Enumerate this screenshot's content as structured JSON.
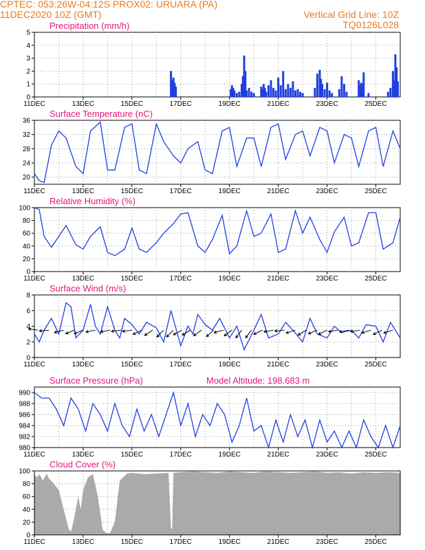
{
  "header": {
    "line1": "CPTEC:   053:26W-04:12S   PROX02: URUARA (PA)",
    "line2_left": "11DEC2020  10Z (GMT)",
    "line2_right": "Vertical Grid Line: 10Z",
    "line3_right": "TQ0126L028"
  },
  "colors": {
    "header": "#e87a1e",
    "title": "#e5157a",
    "series": "#1f3fe0",
    "cloud": "#aaaaaa",
    "grid": "#999999"
  },
  "x_axis": {
    "tick_labels": [
      "11DEC",
      "13DEC",
      "15DEC",
      "17DEC",
      "19DEC",
      "21DEC",
      "23DEC",
      "25DEC"
    ],
    "day_range": [
      11,
      26
    ]
  },
  "chart_data": [
    {
      "id": "precip",
      "type": "bar",
      "title": "Precipitation (mm/h)",
      "ylim": [
        0,
        5
      ],
      "yticks": [
        0,
        1,
        2,
        3,
        4,
        5
      ],
      "x": [
        16.6,
        16.65,
        16.7,
        16.75,
        16.8,
        19.05,
        19.1,
        19.15,
        19.2,
        19.3,
        19.4,
        19.5,
        19.55,
        19.6,
        19.65,
        19.7,
        19.8,
        19.9,
        20.0,
        20.3,
        20.35,
        20.4,
        20.45,
        20.5,
        20.6,
        20.7,
        20.8,
        20.9,
        21.0,
        21.1,
        21.2,
        21.3,
        21.4,
        21.5,
        21.6,
        21.7,
        21.8,
        21.9,
        22.0,
        22.5,
        22.6,
        22.7,
        22.75,
        22.8,
        22.9,
        23.0,
        23.1,
        23.2,
        23.5,
        23.6,
        23.7,
        23.8,
        24.3,
        24.35,
        24.4,
        24.45,
        24.5,
        24.7,
        25.5,
        25.6,
        25.7,
        25.75,
        25.8,
        25.85,
        25.9
      ],
      "values": [
        2.0,
        1.3,
        1.5,
        1.1,
        0.8,
        0.6,
        0.9,
        0.7,
        0.5,
        0.3,
        0.4,
        1.0,
        1.6,
        3.2,
        2.0,
        0.5,
        0.7,
        0.4,
        0.3,
        0.8,
        0.6,
        1.0,
        0.7,
        0.4,
        0.9,
        1.3,
        0.7,
        0.5,
        1.5,
        0.9,
        2.0,
        0.6,
        1.0,
        0.7,
        1.2,
        0.5,
        0.6,
        0.4,
        0.3,
        0.7,
        1.8,
        2.1,
        1.4,
        1.0,
        0.6,
        1.1,
        0.5,
        0.3,
        0.6,
        1.6,
        1.0,
        0.4,
        1.3,
        0.9,
        1.1,
        1.0,
        1.9,
        0.3,
        0.4,
        0.7,
        2.0,
        1.3,
        3.3,
        2.3,
        1.2
      ]
    },
    {
      "id": "temp",
      "type": "line",
      "title": "Surface Temperature (nC)",
      "ylim": [
        18,
        36
      ],
      "yticks": [
        20,
        24,
        28,
        32,
        36
      ],
      "x": [
        11.0,
        11.2,
        11.4,
        11.7,
        12.0,
        12.3,
        12.7,
        13.0,
        13.3,
        13.7,
        14.0,
        14.3,
        14.7,
        15.0,
        15.3,
        15.6,
        16.0,
        16.3,
        16.7,
        17.0,
        17.3,
        17.7,
        18.0,
        18.3,
        18.7,
        19.0,
        19.3,
        19.7,
        20.0,
        20.3,
        20.7,
        21.0,
        21.3,
        21.7,
        22.0,
        22.3,
        22.7,
        23.0,
        23.3,
        23.7,
        24.0,
        24.3,
        24.7,
        25.0,
        25.3,
        25.7,
        26.0
      ],
      "values": [
        21,
        19,
        18.5,
        29,
        33,
        31,
        23,
        21,
        33,
        35.5,
        22,
        22,
        34,
        35,
        22,
        21,
        35,
        30,
        26,
        24,
        28,
        30,
        22,
        21,
        33,
        34,
        23,
        31,
        31,
        23,
        34,
        35,
        25,
        32,
        33,
        26,
        34,
        33,
        24,
        32,
        31,
        23,
        33,
        34,
        23,
        33,
        28
      ]
    },
    {
      "id": "rh",
      "type": "line",
      "title": "Relative Humidity (%)",
      "ylim": [
        0,
        100
      ],
      "yticks": [
        0,
        20,
        40,
        60,
        80,
        100
      ],
      "x": [
        11.0,
        11.2,
        11.4,
        11.7,
        12.0,
        12.3,
        12.7,
        13.0,
        13.3,
        13.7,
        14.0,
        14.3,
        14.7,
        15.0,
        15.3,
        15.6,
        16.0,
        16.3,
        16.7,
        17.0,
        17.3,
        17.7,
        18.0,
        18.3,
        18.7,
        19.0,
        19.3,
        19.7,
        20.0,
        20.3,
        20.7,
        21.0,
        21.3,
        21.7,
        22.0,
        22.3,
        22.7,
        23.0,
        23.3,
        23.7,
        24.0,
        24.3,
        24.7,
        25.0,
        25.3,
        25.7,
        26.0
      ],
      "values": [
        100,
        97,
        55,
        38,
        55,
        72,
        42,
        35,
        55,
        70,
        30,
        25,
        35,
        68,
        35,
        30,
        45,
        60,
        75,
        90,
        92,
        40,
        30,
        50,
        88,
        28,
        40,
        95,
        55,
        60,
        90,
        30,
        35,
        95,
        60,
        85,
        50,
        30,
        62,
        85,
        40,
        45,
        92,
        92,
        35,
        45,
        85
      ]
    },
    {
      "id": "wind",
      "type": "line",
      "title": "Surface Wind (m/s)",
      "ylim": [
        0,
        8
      ],
      "yticks": [
        0,
        2,
        4,
        6,
        8
      ],
      "x": [
        11.0,
        11.2,
        11.4,
        11.7,
        12.0,
        12.3,
        12.5,
        12.7,
        13.0,
        13.3,
        13.5,
        13.7,
        14.0,
        14.3,
        14.5,
        14.7,
        15.0,
        15.3,
        15.6,
        16.0,
        16.3,
        16.6,
        17.0,
        17.3,
        17.5,
        17.7,
        18.0,
        18.3,
        18.6,
        19.0,
        19.3,
        19.6,
        20.0,
        20.3,
        20.6,
        21.0,
        21.3,
        21.6,
        22.0,
        22.3,
        22.6,
        23.0,
        23.3,
        23.6,
        24.0,
        24.3,
        24.6,
        25.0,
        25.3,
        25.6,
        26.0
      ],
      "values": [
        3.0,
        2.0,
        3.5,
        5.0,
        3.0,
        7.0,
        6.5,
        2.5,
        3.5,
        6.8,
        4.0,
        3.0,
        6.5,
        3.5,
        2.5,
        5.0,
        4.2,
        3.0,
        4.5,
        3.8,
        2.0,
        6.0,
        1.5,
        4.0,
        3.0,
        5.5,
        4.2,
        3.5,
        5.0,
        2.5,
        4.0,
        1.0,
        3.5,
        5.5,
        2.5,
        3.0,
        4.5,
        3.5,
        2.0,
        5.0,
        3.0,
        2.5,
        4.0,
        3.2,
        3.5,
        2.5,
        4.2,
        4.0,
        2.0,
        4.5,
        2.5
      ],
      "arrows_x": [
        11.15,
        11.6,
        12.2,
        12.65,
        13.0,
        13.5,
        14.1,
        14.55,
        15.0,
        15.4,
        15.85,
        16.3,
        16.7,
        17.05,
        17.4,
        17.85,
        18.35,
        18.75,
        19.1,
        19.5,
        19.9,
        20.35,
        20.8,
        21.25,
        21.7,
        22.15,
        22.6,
        23.0,
        23.45,
        23.9,
        24.35,
        24.8,
        25.25,
        25.7
      ],
      "arrows_u": [
        -3.8,
        -3.5,
        -3.0,
        -2.5,
        -2.5,
        -3.0,
        -3.2,
        -3.0,
        -3.0,
        -2.0,
        -1.8,
        -1.5,
        -1.5,
        -2.2,
        -2.5,
        -2.5,
        -2.0,
        -3.0,
        -2.0,
        -1.5,
        -1.5,
        -2.5,
        -2.8,
        -3.0,
        -2.5,
        -2.0,
        -2.2,
        -2.0,
        -3.0,
        -3.0,
        -3.0,
        -2.5,
        -2.0,
        -2.5
      ],
      "arrows_v": [
        0.5,
        -0.3,
        -0.8,
        -1.0,
        -1.0,
        -0.6,
        -0.6,
        -0.4,
        -0.4,
        -1.0,
        -1.2,
        -1.5,
        -1.5,
        -1.2,
        -1.5,
        -1.8,
        -1.8,
        -0.8,
        -1.5,
        -2.0,
        -2.0,
        -1.2,
        -0.5,
        -0.3,
        -0.8,
        -1.2,
        -0.9,
        -1.0,
        -0.5,
        -0.6,
        -0.5,
        -0.8,
        -1.0,
        -0.8
      ]
    },
    {
      "id": "pres",
      "type": "line",
      "title": "Surface Pressure (hPa)",
      "subtitle": "Model Altitude: 198.683 m",
      "ylim": [
        980,
        991
      ],
      "yticks": [
        980,
        982,
        984,
        986,
        988,
        990
      ],
      "x": [
        11.0,
        11.3,
        11.6,
        11.9,
        12.2,
        12.5,
        12.8,
        13.1,
        13.4,
        13.7,
        14.0,
        14.3,
        14.6,
        14.9,
        15.2,
        15.5,
        15.8,
        16.1,
        16.4,
        16.7,
        17.0,
        17.3,
        17.6,
        17.9,
        18.2,
        18.5,
        18.8,
        19.1,
        19.4,
        19.7,
        20.0,
        20.3,
        20.6,
        20.9,
        21.2,
        21.5,
        21.8,
        22.1,
        22.4,
        22.7,
        23.0,
        23.3,
        23.6,
        23.9,
        24.2,
        24.5,
        24.8,
        25.1,
        25.4,
        25.7,
        26.0
      ],
      "values": [
        990,
        989,
        989,
        987,
        984,
        989,
        987,
        983,
        988,
        986,
        983,
        988,
        984,
        982,
        987,
        983,
        986,
        982,
        986,
        990,
        984,
        988,
        982,
        986,
        984,
        988,
        986,
        981,
        984,
        989,
        983,
        984,
        980,
        985,
        981,
        986,
        982,
        985,
        980,
        985,
        981,
        983,
        980,
        983,
        980,
        985,
        982,
        980,
        984,
        980,
        984
      ]
    },
    {
      "id": "cloud",
      "type": "area",
      "title": "Cloud Cover (%)",
      "ylim": [
        0,
        100
      ],
      "yticks": [
        0,
        20,
        40,
        60,
        80,
        100
      ],
      "x": [
        11.0,
        11.1,
        11.2,
        11.35,
        11.5,
        11.6,
        11.8,
        12.0,
        12.2,
        12.4,
        12.5,
        12.6,
        12.8,
        12.9,
        13.0,
        13.2,
        13.4,
        13.6,
        13.8,
        13.95,
        14.1,
        14.3,
        14.5,
        14.8,
        15.0,
        15.5,
        16.0,
        16.5,
        16.6,
        16.65,
        16.7,
        17.0,
        17.5,
        18.0,
        18.5,
        19.0,
        19.5,
        20.0,
        20.5,
        21.0,
        21.5,
        22.0,
        22.5,
        23.0,
        23.5,
        24.0,
        24.5,
        25.0,
        25.5,
        26.0
      ],
      "values": [
        95,
        90,
        95,
        85,
        96,
        88,
        80,
        70,
        40,
        10,
        5,
        20,
        60,
        40,
        70,
        90,
        95,
        60,
        8,
        3,
        3,
        20,
        85,
        96,
        97,
        95,
        96,
        97,
        10,
        10,
        97,
        98,
        99,
        98,
        97,
        99,
        98,
        97,
        99,
        98,
        97,
        98,
        99,
        97,
        98,
        96,
        98,
        97,
        98,
        97
      ]
    }
  ]
}
